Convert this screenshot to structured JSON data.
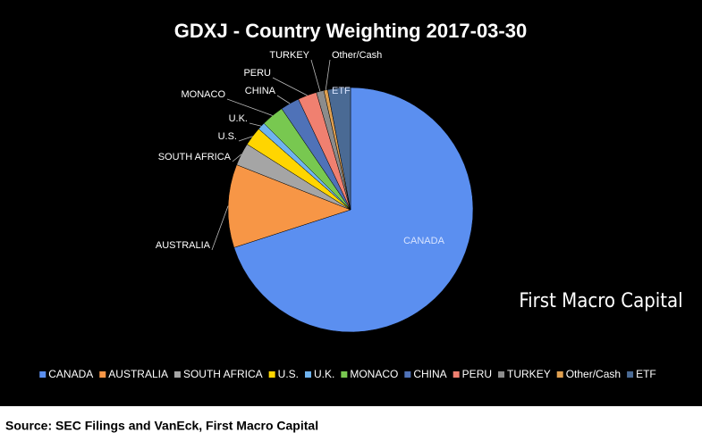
{
  "chart_data": {
    "type": "pie",
    "title": "GDXJ - Country Weighting 2017-03-30",
    "categories": [
      "CANADA",
      "AUSTRALIA",
      "SOUTH AFRICA",
      "U.S.",
      "U.K.",
      "MONACO",
      "CHINA",
      "PERU",
      "TURKEY",
      "Other/Cash",
      "ETF"
    ],
    "values": [
      70,
      11,
      3,
      2.5,
      1,
      3,
      2.5,
      2.5,
      1,
      0.5,
      3
    ],
    "colors": [
      "#5b8ff0",
      "#f79646",
      "#a5a5a5",
      "#ffd500",
      "#6fb3ef",
      "#78c850",
      "#4f72b8",
      "#f08070",
      "#8c8c8c",
      "#e0a050",
      "#4a6a94"
    ],
    "annotation": "First Macro Capital",
    "source": "Source: SEC Filings and VanEck, First Macro Capital"
  }
}
